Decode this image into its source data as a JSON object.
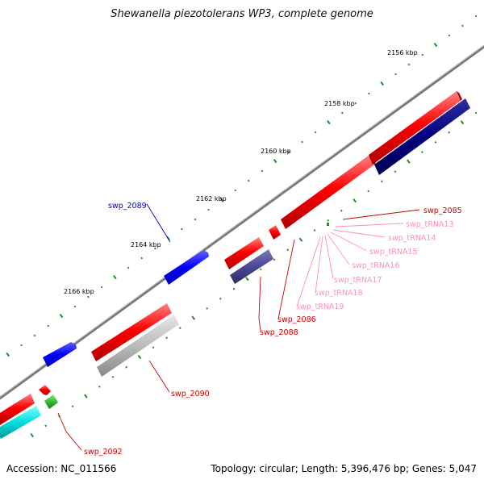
{
  "title": "Shewanella piezotolerans WP3, complete genome",
  "accession": "Accession: NC_011566",
  "summary": "Topology: circular; Length: 5,396,476 bp; Genes: 5,047",
  "colors": {
    "cds_red": "#ff0000",
    "navy": "#000080",
    "blue": "#0000ff",
    "slate": "#4b4896",
    "gray": "#bbbbbb",
    "cyan": "#00dddd",
    "green": "#33bb33",
    "trna_pink": "#ff8fc0",
    "label_red": "#cc0000",
    "backbone": "#777777",
    "ticks": "#228b22"
  },
  "kbp_labels": [
    "2156 kbp",
    "2158 kbp",
    "2160 kbp",
    "2162 kbp",
    "2164 kbp",
    "2166 kbp"
  ],
  "gene_labels": {
    "swp_2085": "swp_2085",
    "swp_tRNA13": "swp_tRNA13",
    "swp_tRNA14": "swp_tRNA14",
    "swp_tRNA15": "swp_tRNA15",
    "swp_tRNA16": "swp_tRNA16",
    "swp_tRNA17": "swp_tRNA17",
    "swp_tRNA18": "swp_tRNA18",
    "swp_tRNA19": "swp_tRNA19",
    "swp_2086": "swp_2086",
    "swp_2088": "swp_2088",
    "swp_2089": "swp_2089",
    "swp_2090": "swp_2090",
    "swp_2092": "swp_2092"
  }
}
